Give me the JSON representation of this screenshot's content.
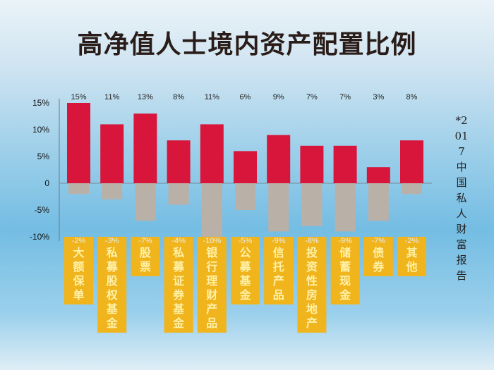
{
  "title": "高净值人士境内资产配置比例",
  "note": "*2017中国私人财富报告",
  "colors": {
    "positive": "#d8153a",
    "negative": "#b9b0a8",
    "category_box": "#f0b41c"
  },
  "chart_data": {
    "type": "bar",
    "title": "高净值人士境内资产配置比例",
    "categories": [
      "大额保单",
      "私募股权基金",
      "股票",
      "私募证券基金",
      "银行理财产品",
      "公募基金",
      "信托产品",
      "投资性房地产",
      "储蓄现金",
      "债券",
      "其他"
    ],
    "series": [
      {
        "values": [
          15,
          11,
          13,
          8,
          11,
          6,
          9,
          7,
          7,
          3,
          8
        ],
        "labels": [
          "15%",
          "11%",
          "13%",
          "8%",
          "11%",
          "6%",
          "9%",
          "7%",
          "7%",
          "3%",
          "8%"
        ]
      },
      {
        "values": [
          -2,
          -3,
          -7,
          -4,
          -10,
          -5,
          -9,
          -8,
          -9,
          -7,
          -2
        ],
        "labels": [
          "-2%",
          "-3%",
          "-7%",
          "-4%",
          "-10%",
          "-5%",
          "-9%",
          "-8%",
          "-9%",
          "-7%",
          "-2%"
        ]
      }
    ],
    "yticks": [
      "15%",
      "10%",
      "5%",
      "0",
      "-5%",
      "-10%"
    ],
    "ylim": [
      -10,
      15
    ],
    "grid": false,
    "legend": "none"
  }
}
